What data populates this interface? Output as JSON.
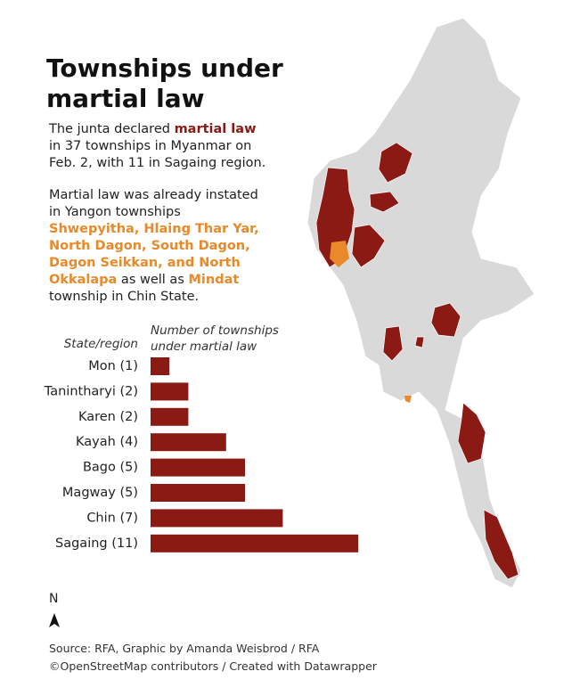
{
  "title": "Townships under martial law",
  "description": [
    [
      {
        "text": "The junta declared "
      },
      {
        "text": "martial law",
        "color": "#8b1a14"
      },
      {
        "text": " in 37 townships in Myanmar on Feb. 2, with 11 in Sagaing region."
      }
    ],
    [
      {
        "text": "Martial law was already instated in Yangon townships "
      },
      {
        "text": "Shwepyitha, Hlaing Thar Yar, North Dagon, South Dagon, Dagon Seikkan, and North Okkalapa",
        "color": "#e8892a"
      },
      {
        "text": " as well as "
      },
      {
        "text": "Mindat",
        "color": "#e8892a"
      },
      {
        "text": " township in Chin State."
      }
    ]
  ],
  "chart_data": {
    "type": "bar",
    "orientation": "horizontal",
    "y_label": "State/region",
    "x_label": "Number of townships under martial law",
    "categories": [
      "Mon (1)",
      "Tanintharyi (2)",
      "Karen (2)",
      "Kayah (4)",
      "Bago (5)",
      "Magway (5)",
      "Chin (7)",
      "Sagaing (11)"
    ],
    "values": [
      1,
      2,
      2,
      4,
      5,
      5,
      7,
      11
    ],
    "color": "#8b1a14"
  },
  "north": "N",
  "source": [
    "Source: RFA, Graphic by Amanda Weisbrod / RFA",
    "©OpenStreetMap contributors / Created with Datawrapper"
  ]
}
